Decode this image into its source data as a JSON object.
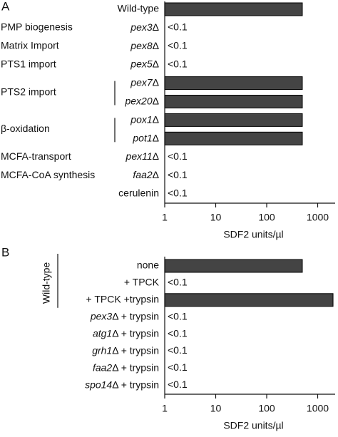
{
  "chart_data": [
    {
      "type": "bar",
      "orientation": "horizontal",
      "panel_label": "A",
      "categories": [
        "Wild-type",
        "pex3Δ",
        "pex8Δ",
        "pex5Δ",
        "pex7Δ",
        "pex20Δ",
        "pox1Δ",
        "pot1Δ",
        "pex11Δ",
        "faa2Δ",
        "cerulenin"
      ],
      "values": [
        500,
        null,
        null,
        null,
        500,
        500,
        500,
        500,
        null,
        null,
        null
      ],
      "value_labels": [
        null,
        "<0.1",
        "<0.1",
        "<0.1",
        null,
        null,
        null,
        null,
        "<0.1",
        "<0.1",
        "<0.1"
      ],
      "groups": [
        {
          "label": "PMP biogenesis",
          "categories": [
            1
          ]
        },
        {
          "label": "Matrix Import",
          "categories": [
            2
          ]
        },
        {
          "label": "PTS1 import",
          "categories": [
            3
          ]
        },
        {
          "label": "PTS2 import",
          "categories": [
            4,
            5
          ],
          "bracket": true
        },
        {
          "label": "β-oxidation",
          "categories": [
            6,
            7
          ],
          "bracket": true
        },
        {
          "label": "MCFA-transport",
          "categories": [
            8
          ]
        },
        {
          "label": "MCFA-CoA synthesis",
          "categories": [
            9
          ]
        }
      ],
      "color": "#444444",
      "xlabel": "SDF2 units/µl",
      "log_scale": true,
      "xlim": [
        1,
        2200
      ],
      "xticks": [
        1,
        10,
        100,
        1000
      ]
    },
    {
      "type": "bar",
      "orientation": "horizontal",
      "panel_label": "B",
      "categories": [
        "none",
        "+ TPCK",
        "+ TPCK +trypsin",
        "pex3Δ + trypsin",
        "atg1Δ + trypsin",
        "grh1Δ + trypsin",
        "faa2Δ + trypsin",
        "spo14Δ + trypsin"
      ],
      "values": [
        500,
        null,
        2000,
        null,
        null,
        null,
        null,
        null
      ],
      "value_labels": [
        null,
        "<0.1",
        null,
        "<0.1",
        "<0.1",
        "<0.1",
        "<0.1",
        "<0.1"
      ],
      "groups": [
        {
          "label": "Wild-type",
          "categories": [
            0,
            1,
            2
          ],
          "rotated": true
        }
      ],
      "color": "#444444",
      "xlabel": "SDF2 units/µl",
      "log_scale": true,
      "xlim": [
        1,
        2200
      ],
      "xticks": [
        1,
        10,
        100,
        1000
      ]
    }
  ]
}
